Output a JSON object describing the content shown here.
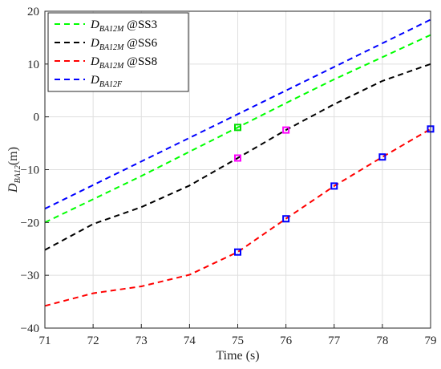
{
  "chart_data": {
    "type": "line",
    "xlabel": "Time (s)",
    "ylabel_main": "D",
    "ylabel_sub": "BA12",
    "ylabel_unit": "(m)",
    "xlim": [
      71,
      79
    ],
    "ylim": [
      -40,
      20
    ],
    "xticks": [
      71,
      72,
      73,
      74,
      75,
      76,
      77,
      78,
      79
    ],
    "yticks": [
      -40,
      -30,
      -20,
      -10,
      0,
      10,
      20
    ],
    "grid": true,
    "legend_position": "top-left",
    "series": [
      {
        "name_main": "D",
        "name_sub": "BA12M",
        "name_suffix": " @SS3",
        "color": "#00ff00",
        "style": "dashed",
        "x": [
          71,
          72,
          73,
          74,
          75,
          76,
          77,
          78,
          79
        ],
        "y": [
          -20.0,
          -15.6,
          -11.2,
          -6.6,
          -2.0,
          2.6,
          7.1,
          11.3,
          15.5
        ]
      },
      {
        "name_main": "D",
        "name_sub": "BA12M",
        "name_suffix": " @SS6",
        "color": "#000000",
        "style": "dashed",
        "x": [
          71,
          72,
          73,
          74,
          75,
          76,
          77,
          78,
          79
        ],
        "y": [
          -25.2,
          -20.3,
          -17.1,
          -13.0,
          -7.8,
          -2.5,
          2.4,
          6.8,
          10.0
        ]
      },
      {
        "name_main": "D",
        "name_sub": "BA12M",
        "name_suffix": " @SS8",
        "color": "#ff0000",
        "style": "dashed",
        "x": [
          71,
          72,
          73,
          74,
          75,
          76,
          77,
          78,
          79
        ],
        "y": [
          -35.8,
          -33.4,
          -32.1,
          -29.9,
          -25.6,
          -19.3,
          -13.1,
          -7.6,
          -2.3
        ]
      },
      {
        "name_main": "D",
        "name_sub": "BA12F",
        "name_suffix": "",
        "color": "#0000ff",
        "style": "dashed",
        "x": [
          71,
          79
        ],
        "y": [
          -17.4,
          18.4
        ]
      }
    ],
    "markers": [
      {
        "x": 75,
        "y": -2.0,
        "color": "#00dd00"
      },
      {
        "x": 75,
        "y": -7.8,
        "color": "#ff00ff"
      },
      {
        "x": 76,
        "y": -2.5,
        "color": "#ff00ff"
      },
      {
        "x": 75,
        "y": -25.6,
        "color": "#0000ff"
      },
      {
        "x": 76,
        "y": -19.3,
        "color": "#0000ff"
      },
      {
        "x": 77,
        "y": -13.1,
        "color": "#0000ff"
      },
      {
        "x": 78,
        "y": -7.6,
        "color": "#0000ff"
      },
      {
        "x": 79,
        "y": -2.3,
        "color": "#0000ff"
      }
    ]
  }
}
